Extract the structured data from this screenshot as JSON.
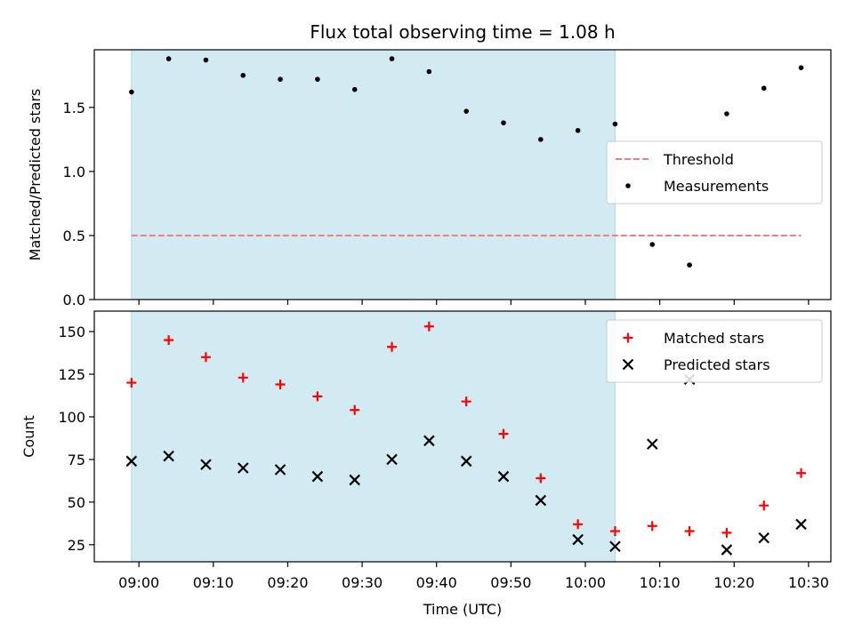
{
  "chart_data": {
    "title": "Flux total observing time = 1.08 h",
    "xlabel": "Time (UTC)",
    "x_ticks": [
      "09:00",
      "09:10",
      "09:20",
      "09:30",
      "09:40",
      "09:50",
      "10:00",
      "10:10",
      "10:20",
      "10:30"
    ],
    "x_range": [
      "08:54",
      "10:33"
    ],
    "observing_window": {
      "start": "08:59",
      "end": "10:04",
      "color": "#add8e6"
    },
    "panels": [
      {
        "type": "scatter",
        "ylabel": "Matched/Predicted stars",
        "ylim": [
          0,
          1.95
        ],
        "y_ticks": [
          "0.0",
          "0.5",
          "1.0",
          "1.5"
        ],
        "threshold": {
          "name": "Threshold",
          "value": 0.5,
          "x_start": "08:59",
          "x_end": "10:29",
          "color": "#f08080"
        },
        "series": [
          {
            "name": "Measurements",
            "marker": "dot",
            "color": "#000000",
            "x": [
              "08:59",
              "09:04",
              "09:09",
              "09:14",
              "09:19",
              "09:24",
              "09:29",
              "09:34",
              "09:39",
              "09:44",
              "09:49",
              "09:54",
              "09:59",
              "10:04",
              "10:09",
              "10:14",
              "10:19",
              "10:24",
              "10:29"
            ],
            "y": [
              1.62,
              1.88,
              1.87,
              1.75,
              1.72,
              1.72,
              1.64,
              1.88,
              1.78,
              1.47,
              1.38,
              1.25,
              1.32,
              1.37,
              0.43,
              0.27,
              1.45,
              1.65,
              1.81
            ]
          }
        ],
        "legend": {
          "placement": "center-right",
          "entries": [
            "Threshold",
            "Measurements"
          ]
        }
      },
      {
        "type": "scatter",
        "ylabel": "Count",
        "ylim": [
          15,
          162
        ],
        "y_ticks": [
          "25",
          "50",
          "75",
          "100",
          "125",
          "150"
        ],
        "series": [
          {
            "name": "Matched stars",
            "marker": "plus",
            "color": "#ff0000",
            "x": [
              "08:59",
              "09:04",
              "09:09",
              "09:14",
              "09:19",
              "09:24",
              "09:29",
              "09:34",
              "09:39",
              "09:44",
              "09:49",
              "09:54",
              "09:59",
              "10:04",
              "10:09",
              "10:14",
              "10:19",
              "10:24",
              "10:29"
            ],
            "y": [
              120,
              145,
              135,
              123,
              119,
              112,
              104,
              141,
              153,
              109,
              90,
              64,
              37,
              33,
              36,
              33,
              32,
              48,
              67
            ]
          },
          {
            "name": "Predicted stars",
            "marker": "x",
            "color": "#000000",
            "x": [
              "08:59",
              "09:04",
              "09:09",
              "09:14",
              "09:19",
              "09:24",
              "09:29",
              "09:34",
              "09:39",
              "09:44",
              "09:49",
              "09:54",
              "09:59",
              "10:04",
              "10:09",
              "10:14",
              "10:19",
              "10:24",
              "10:29"
            ],
            "y": [
              74,
              77,
              72,
              70,
              69,
              65,
              63,
              75,
              86,
              74,
              65,
              51,
              28,
              24,
              84,
              122,
              22,
              29,
              37
            ]
          }
        ],
        "legend": {
          "placement": "top-right",
          "entries": [
            "Matched stars",
            "Predicted stars"
          ]
        }
      }
    ]
  }
}
